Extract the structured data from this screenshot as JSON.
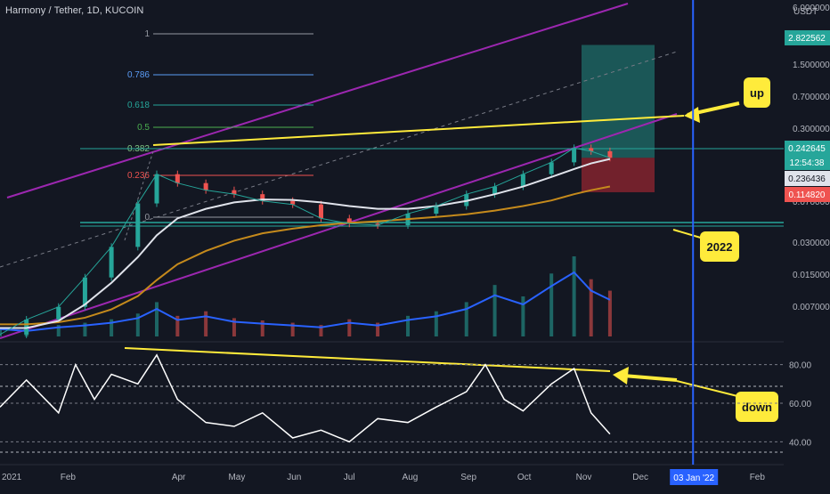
{
  "header": {
    "symbol": "Harmony / Tether, 1D, KUCOIN",
    "currency": "USDT"
  },
  "colors": {
    "background": "#131722",
    "candle_up": "#26a69a",
    "candle_down": "#ef5350",
    "channel": "#9c27b0",
    "trendline": "#ffeb3b",
    "ma_white": "#e0e3eb",
    "ma_orange": "#c58a1c",
    "volume_ma": "#2962ff",
    "rsi_line": "#ffffff",
    "date_marker": "#2962ff",
    "label_bg": "#ffeb3b",
    "target_zone": "#26a69a",
    "stop_zone": "#b22833"
  },
  "price_axis": {
    "scale": "log",
    "labels": [
      "6.000000",
      "1.500000",
      "0.700000",
      "0.300000",
      "0.150000",
      "0.070000",
      "0.030000",
      "0.015000",
      "0.007000"
    ],
    "badges": [
      {
        "text": "2.822562",
        "color": "#26a69a"
      },
      {
        "text": "0.242645",
        "color": "#26a69a"
      },
      {
        "text": "12:54:38",
        "color": "#26a69a"
      },
      {
        "text": "0.236436",
        "color": "#e0e3eb"
      },
      {
        "text": "0.114820",
        "color": "#ef5350"
      }
    ]
  },
  "fib_levels": [
    {
      "label": "1",
      "color": "#9598a1"
    },
    {
      "label": "0.786",
      "color": "#5b9cf6"
    },
    {
      "label": "0.618",
      "color": "#26a69a"
    },
    {
      "label": "0.5",
      "color": "#4caf50"
    },
    {
      "label": "0.382",
      "color": "#81c784"
    },
    {
      "label": "0.236",
      "color": "#ef5350"
    },
    {
      "label": "0",
      "color": "#9598a1"
    }
  ],
  "annotations": [
    {
      "text": "up"
    },
    {
      "text": "2022"
    },
    {
      "text": "down"
    }
  ],
  "rsi_axis": {
    "labels": [
      "80.00",
      "60.00",
      "40.00"
    ]
  },
  "time_axis": {
    "labels": [
      "2021",
      "Feb",
      "Apr",
      "May",
      "Jun",
      "Jul",
      "Aug",
      "Sep",
      "Oct",
      "Nov",
      "Dec",
      "Feb"
    ],
    "highlight": "03 Jan '22"
  },
  "chart_data": {
    "type": "line",
    "title": "Harmony / Tether, 1D, KUCOIN",
    "y_scale": "log",
    "x": [
      "2021-01-01",
      "2021-01-15",
      "2021-02-01",
      "2021-02-15",
      "2021-03-01",
      "2021-03-15",
      "2021-03-25",
      "2021-04-05",
      "2021-04-20",
      "2021-05-05",
      "2021-05-20",
      "2021-06-05",
      "2021-06-20",
      "2021-07-05",
      "2021-07-20",
      "2021-08-05",
      "2021-08-20",
      "2021-09-05",
      "2021-09-20",
      "2021-10-05",
      "2021-10-20",
      "2021-11-01",
      "2021-11-10",
      "2021-11-20"
    ],
    "series": [
      {
        "values": [
          0.0052,
          0.0072,
          0.0095,
          0.018,
          0.035,
          0.09,
          0.17,
          0.14,
          0.12,
          0.11,
          0.095,
          0.088,
          0.065,
          0.058,
          0.056,
          0.072,
          0.085,
          0.11,
          0.13,
          0.17,
          0.22,
          0.3,
          0.28,
          0.242645
        ]
      },
      {
        "values": [
          0.006,
          0.006,
          0.007,
          0.01,
          0.016,
          0.028,
          0.045,
          0.065,
          0.08,
          0.092,
          0.098,
          0.097,
          0.092,
          0.085,
          0.08,
          0.08,
          0.085,
          0.095,
          0.11,
          0.13,
          0.16,
          0.19,
          0.215,
          0.236436
        ]
      },
      {
        "values": [
          0.0065,
          0.0065,
          0.0068,
          0.0075,
          0.009,
          0.012,
          0.017,
          0.024,
          0.032,
          0.04,
          0.047,
          0.052,
          0.056,
          0.059,
          0.061,
          0.064,
          0.067,
          0.071,
          0.077,
          0.085,
          0.096,
          0.11,
          0.12,
          0.13
        ]
      }
    ],
    "volume": [
      8,
      6,
      10,
      12,
      15,
      20,
      30,
      18,
      22,
      16,
      14,
      12,
      10,
      15,
      12,
      18,
      22,
      30,
      45,
      35,
      55,
      70,
      50,
      40
    ],
    "rsi": {
      "x": [
        "2021-01-01",
        "2021-01-15",
        "2021-02-01",
        "2021-02-10",
        "2021-02-20",
        "2021-03-01",
        "2021-03-15",
        "2021-03-25",
        "2021-04-05",
        "2021-04-20",
        "2021-05-05",
        "2021-05-20",
        "2021-06-05",
        "2021-06-20",
        "2021-07-05",
        "2021-07-20",
        "2021-08-05",
        "2021-08-20",
        "2021-09-05",
        "2021-09-15",
        "2021-09-25",
        "2021-10-05",
        "2021-10-20",
        "2021-11-01",
        "2021-11-10",
        "2021-11-20"
      ],
      "values": [
        58,
        72,
        55,
        80,
        62,
        75,
        70,
        85,
        62,
        50,
        48,
        55,
        42,
        46,
        40,
        52,
        50,
        58,
        66,
        80,
        62,
        56,
        70,
        78,
        55,
        44
      ],
      "ylim": [
        30,
        90
      ]
    },
    "levels": {
      "target": 2.822562,
      "stop": 0.11482,
      "entry": 0.242645
    }
  }
}
